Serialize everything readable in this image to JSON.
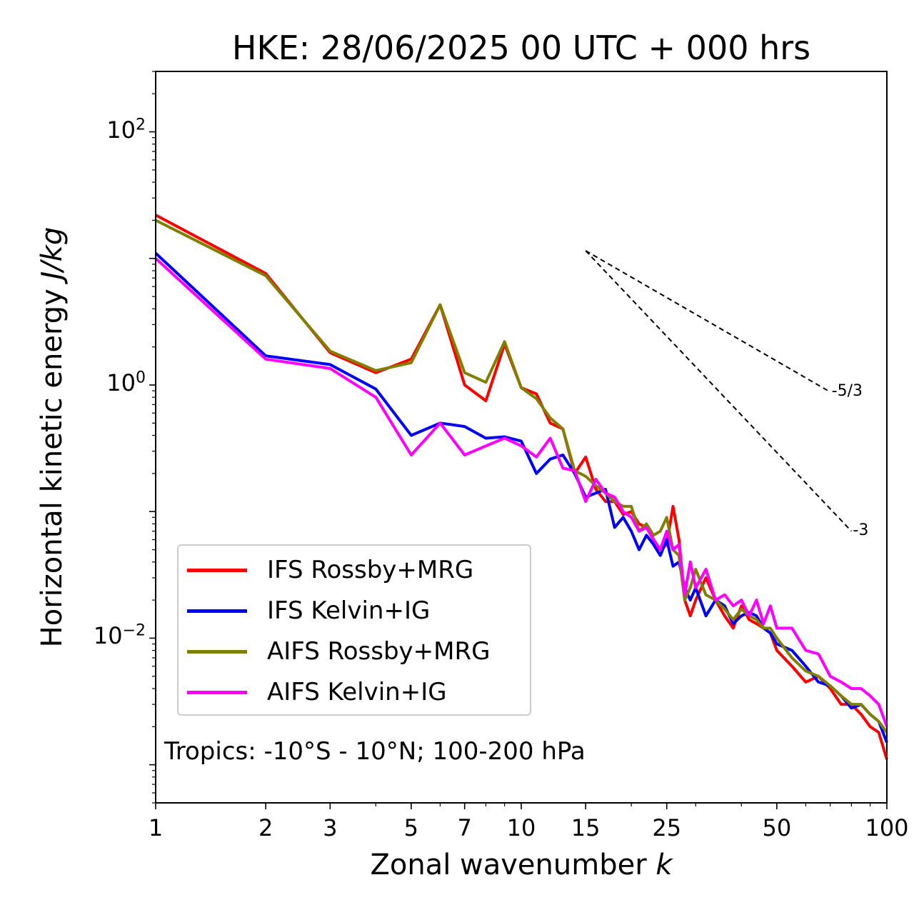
{
  "title": "HKE: 28/06/2025 00 UTC + 000 hrs",
  "annotation": "Tropics: -10°S - 10°N; 100-200 hPa",
  "chart_data": {
    "type": "line",
    "xlabel_text": "Zonal wavenumber ",
    "xlabel_var": "k",
    "ylabel_text": "Horizontal kinetic energy ",
    "ylabel_var": "J/kg",
    "xscale": "log",
    "yscale": "log",
    "xlim": [
      1,
      100
    ],
    "ylim": [
      0.0005,
      300
    ],
    "xticks": [
      {
        "value": 1,
        "label": "1"
      },
      {
        "value": 2,
        "label": "2"
      },
      {
        "value": 3,
        "label": "3"
      },
      {
        "value": 5,
        "label": "5"
      },
      {
        "value": 7,
        "label": "7"
      },
      {
        "value": 10,
        "label": "10"
      },
      {
        "value": 15,
        "label": "15"
      },
      {
        "value": 25,
        "label": "25"
      },
      {
        "value": 50,
        "label": "50"
      },
      {
        "value": 100,
        "label": "100"
      }
    ],
    "yticks": [
      {
        "value": 100,
        "base": "10",
        "exp": "2"
      },
      {
        "value": 1,
        "base": "10",
        "exp": "0"
      },
      {
        "value": 0.01,
        "base": "10",
        "exp": "−2"
      }
    ],
    "legend_position": "lower-left",
    "reference_lines": [
      {
        "label": "-5/3",
        "x": [
          15,
          70
        ],
        "y": [
          11.5,
          0.88
        ]
      },
      {
        "label": "-3",
        "x": [
          15,
          80
        ],
        "y": [
          11.5,
          0.07
        ]
      }
    ],
    "series": [
      {
        "name": "IFS Rossby+MRG",
        "color": "#ff0000",
        "x": [
          1,
          2,
          3,
          4,
          5,
          6,
          7,
          8,
          9,
          10,
          11,
          12,
          13,
          14,
          15,
          16,
          17,
          18,
          19,
          20,
          21,
          22,
          23,
          24,
          25,
          26,
          27,
          28,
          29,
          30,
          32,
          34,
          36,
          38,
          40,
          42,
          44,
          46,
          48,
          50,
          55,
          60,
          65,
          70,
          75,
          80,
          85,
          90,
          95,
          100
        ],
        "y": [
          22,
          7.6,
          1.8,
          1.25,
          1.6,
          4.3,
          1.0,
          0.75,
          2.1,
          0.95,
          0.85,
          0.5,
          0.45,
          0.2,
          0.27,
          0.15,
          0.12,
          0.12,
          0.095,
          0.1,
          0.08,
          0.075,
          0.06,
          0.05,
          0.055,
          0.11,
          0.06,
          0.02,
          0.015,
          0.02,
          0.03,
          0.02,
          0.015,
          0.012,
          0.018,
          0.014,
          0.013,
          0.012,
          0.011,
          0.008,
          0.006,
          0.0045,
          0.005,
          0.004,
          0.003,
          0.003,
          0.0025,
          0.002,
          0.0018,
          0.0011
        ]
      },
      {
        "name": "IFS Kelvin+IG",
        "color": "#0000ff",
        "x": [
          1,
          2,
          3,
          4,
          5,
          6,
          7,
          8,
          9,
          10,
          11,
          12,
          13,
          14,
          15,
          16,
          17,
          18,
          19,
          20,
          21,
          22,
          23,
          24,
          25,
          26,
          27,
          28,
          29,
          30,
          32,
          34,
          36,
          38,
          40,
          42,
          44,
          46,
          48,
          50,
          55,
          60,
          65,
          70,
          75,
          80,
          85,
          90,
          95,
          100
        ],
        "y": [
          11,
          1.7,
          1.45,
          0.93,
          0.4,
          0.5,
          0.47,
          0.38,
          0.39,
          0.36,
          0.2,
          0.26,
          0.28,
          0.2,
          0.13,
          0.14,
          0.15,
          0.075,
          0.09,
          0.07,
          0.05,
          0.065,
          0.055,
          0.045,
          0.06,
          0.037,
          0.04,
          0.025,
          0.02,
          0.025,
          0.015,
          0.02,
          0.018,
          0.013,
          0.015,
          0.016,
          0.015,
          0.012,
          0.011,
          0.009,
          0.008,
          0.006,
          0.0045,
          0.0042,
          0.0035,
          0.0028,
          0.003,
          0.0025,
          0.0022,
          0.0015
        ]
      },
      {
        "name": "AIFS Rossby+MRG",
        "color": "#808000",
        "x": [
          1,
          2,
          3,
          4,
          5,
          6,
          7,
          8,
          9,
          10,
          11,
          12,
          13,
          14,
          15,
          16,
          17,
          18,
          19,
          20,
          21,
          22,
          23,
          24,
          25,
          26,
          27,
          28,
          29,
          30,
          32,
          34,
          36,
          38,
          40,
          42,
          44,
          46,
          48,
          50,
          55,
          60,
          65,
          70,
          75,
          80,
          85,
          90,
          95,
          100
        ],
        "y": [
          20,
          7.3,
          1.85,
          1.3,
          1.5,
          4.3,
          1.25,
          1.05,
          2.2,
          0.95,
          0.78,
          0.55,
          0.45,
          0.21,
          0.19,
          0.16,
          0.14,
          0.12,
          0.11,
          0.11,
          0.07,
          0.08,
          0.065,
          0.07,
          0.09,
          0.05,
          0.045,
          0.02,
          0.025,
          0.035,
          0.022,
          0.02,
          0.017,
          0.014,
          0.017,
          0.015,
          0.014,
          0.012,
          0.012,
          0.01,
          0.007,
          0.0055,
          0.005,
          0.0042,
          0.0035,
          0.003,
          0.003,
          0.0025,
          0.0022,
          0.0018
        ]
      },
      {
        "name": "AIFS Kelvin+IG",
        "color": "#ff00ff",
        "x": [
          1,
          2,
          3,
          4,
          5,
          6,
          7,
          8,
          9,
          10,
          11,
          12,
          13,
          14,
          15,
          16,
          17,
          18,
          19,
          20,
          21,
          22,
          23,
          24,
          25,
          26,
          27,
          28,
          29,
          30,
          32,
          34,
          36,
          38,
          40,
          42,
          44,
          46,
          48,
          50,
          55,
          60,
          65,
          70,
          75,
          80,
          85,
          90,
          95,
          100
        ],
        "y": [
          10,
          1.6,
          1.35,
          0.8,
          0.28,
          0.5,
          0.28,
          0.33,
          0.38,
          0.33,
          0.27,
          0.38,
          0.22,
          0.21,
          0.12,
          0.18,
          0.14,
          0.13,
          0.1,
          0.09,
          0.07,
          0.075,
          0.06,
          0.05,
          0.07,
          0.05,
          0.055,
          0.022,
          0.04,
          0.025,
          0.035,
          0.02,
          0.022,
          0.018,
          0.02,
          0.015,
          0.02,
          0.013,
          0.018,
          0.012,
          0.012,
          0.008,
          0.0075,
          0.005,
          0.0045,
          0.004,
          0.004,
          0.0035,
          0.003,
          0.002
        ]
      }
    ]
  }
}
